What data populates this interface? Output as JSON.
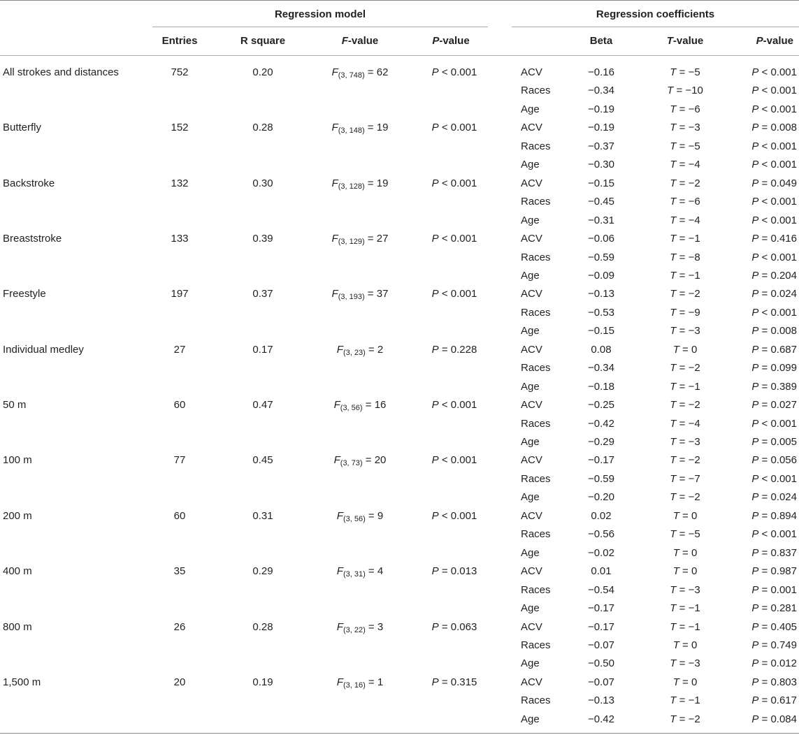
{
  "headers": {
    "group_model": "Regression model",
    "group_coefficients": "Regression coefficients",
    "entries": "Entries",
    "r_square": "R square",
    "f_value_italic": "F",
    "f_value_rest": "-value",
    "p_value_italic": "P",
    "p_value_rest": "-value",
    "beta": "Beta",
    "t_value_italic": "T",
    "t_value_rest": "-value",
    "p_value2_italic": "P",
    "p_value2_rest": "-value"
  },
  "groups": [
    {
      "label": "All strokes and distances",
      "entries": "752",
      "r_square": "0.20",
      "f_sub": "(3, 748)",
      "f_val": "62",
      "p_model": "< 0.001",
      "coefs": [
        {
          "var": "ACV",
          "beta": "−0.16",
          "t": "−5",
          "p": "< 0.001"
        },
        {
          "var": "Races",
          "beta": "−0.34",
          "t": "−10",
          "p": "< 0.001"
        },
        {
          "var": "Age",
          "beta": "−0.19",
          "t": "−6",
          "p": "< 0.001"
        }
      ]
    },
    {
      "label": "Butterfly",
      "entries": "152",
      "r_square": "0.28",
      "f_sub": "(3, 148)",
      "f_val": "19",
      "p_model": "< 0.001",
      "coefs": [
        {
          "var": "ACV",
          "beta": "−0.19",
          "t": "−3",
          "p": "= 0.008"
        },
        {
          "var": "Races",
          "beta": "−0.37",
          "t": "−5",
          "p": "< 0.001"
        },
        {
          "var": "Age",
          "beta": "−0.30",
          "t": "−4",
          "p": "< 0.001"
        }
      ]
    },
    {
      "label": "Backstroke",
      "entries": "132",
      "r_square": "0.30",
      "f_sub": "(3, 128)",
      "f_val": "19",
      "p_model": "< 0.001",
      "coefs": [
        {
          "var": "ACV",
          "beta": "−0.15",
          "t": "−2",
          "p": "= 0.049"
        },
        {
          "var": "Races",
          "beta": "−0.45",
          "t": "−6",
          "p": "< 0.001"
        },
        {
          "var": "Age",
          "beta": "−0.31",
          "t": "−4",
          "p": "< 0.001"
        }
      ]
    },
    {
      "label": "Breaststroke",
      "entries": "133",
      "r_square": "0.39",
      "f_sub": "(3, 129)",
      "f_val": "27",
      "p_model": "< 0.001",
      "coefs": [
        {
          "var": "ACV",
          "beta": "−0.06",
          "t": "−1",
          "p": "= 0.416"
        },
        {
          "var": "Races",
          "beta": "−0.59",
          "t": "−8",
          "p": "< 0.001"
        },
        {
          "var": "Age",
          "beta": "−0.09",
          "t": "−1",
          "p": "= 0.204"
        }
      ]
    },
    {
      "label": "Freestyle",
      "entries": "197",
      "r_square": "0.37",
      "f_sub": "(3, 193)",
      "f_val": "37",
      "p_model": "< 0.001",
      "coefs": [
        {
          "var": "ACV",
          "beta": "−0.13",
          "t": "−2",
          "p": "= 0.024"
        },
        {
          "var": "Races",
          "beta": "−0.53",
          "t": "−9",
          "p": "< 0.001"
        },
        {
          "var": "Age",
          "beta": "−0.15",
          "t": "−3",
          "p": "= 0.008"
        }
      ]
    },
    {
      "label": "Individual medley",
      "entries": "27",
      "r_square": "0.17",
      "f_sub": "(3, 23)",
      "f_val": "2",
      "p_model": "= 0.228",
      "coefs": [
        {
          "var": "ACV",
          "beta": "0.08",
          "t": "0",
          "p": "= 0.687"
        },
        {
          "var": "Races",
          "beta": "−0.34",
          "t": "−2",
          "p": "= 0.099"
        },
        {
          "var": "Age",
          "beta": "−0.18",
          "t": "−1",
          "p": "= 0.389"
        }
      ]
    },
    {
      "label": "50 m",
      "entries": "60",
      "r_square": "0.47",
      "f_sub": "(3, 56)",
      "f_val": "16",
      "p_model": "< 0.001",
      "coefs": [
        {
          "var": "ACV",
          "beta": "−0.25",
          "t": "−2",
          "p": "= 0.027"
        },
        {
          "var": "Races",
          "beta": "−0.42",
          "t": "−4",
          "p": "< 0.001"
        },
        {
          "var": "Age",
          "beta": "−0.29",
          "t": "−3",
          "p": "= 0.005"
        }
      ]
    },
    {
      "label": "100 m",
      "entries": "77",
      "r_square": "0.45",
      "f_sub": "(3, 73)",
      "f_val": "20",
      "p_model": "< 0.001",
      "coefs": [
        {
          "var": "ACV",
          "beta": "−0.17",
          "t": "−2",
          "p": "= 0.056"
        },
        {
          "var": "Races",
          "beta": "−0.59",
          "t": "−7",
          "p": "< 0.001"
        },
        {
          "var": "Age",
          "beta": "−0.20",
          "t": "−2",
          "p": "= 0.024"
        }
      ]
    },
    {
      "label": "200 m",
      "entries": "60",
      "r_square": "0.31",
      "f_sub": "(3, 56)",
      "f_val": "9",
      "p_model": "< 0.001",
      "coefs": [
        {
          "var": "ACV",
          "beta": "0.02",
          "t": "0",
          "p": "= 0.894"
        },
        {
          "var": "Races",
          "beta": "−0.56",
          "t": "−5",
          "p": "< 0.001"
        },
        {
          "var": "Age",
          "beta": "−0.02",
          "t": "0",
          "p": "= 0.837"
        }
      ]
    },
    {
      "label": "400 m",
      "entries": "35",
      "r_square": "0.29",
      "f_sub": "(3, 31)",
      "f_val": "4",
      "p_model": "= 0.013",
      "coefs": [
        {
          "var": "ACV",
          "beta": "0.01",
          "t": "0",
          "p": "= 0.987"
        },
        {
          "var": "Races",
          "beta": "−0.54",
          "t": "−3",
          "p": "= 0.001"
        },
        {
          "var": "Age",
          "beta": "−0.17",
          "t": "−1",
          "p": "= 0.281"
        }
      ]
    },
    {
      "label": "800 m",
      "entries": "26",
      "r_square": "0.28",
      "f_sub": "(3, 22)",
      "f_val": "3",
      "p_model": "= 0.063",
      "coefs": [
        {
          "var": "ACV",
          "beta": "−0.17",
          "t": "−1",
          "p": "= 0.405"
        },
        {
          "var": "Races",
          "beta": "−0.07",
          "t": "0",
          "p": "= 0.749"
        },
        {
          "var": "Age",
          "beta": "−0.50",
          "t": "−3",
          "p": "= 0.012"
        }
      ]
    },
    {
      "label": "1,500 m",
      "entries": "20",
      "r_square": "0.19",
      "f_sub": "(3, 16)",
      "f_val": "1",
      "p_model": "= 0.315",
      "coefs": [
        {
          "var": "ACV",
          "beta": "−0.07",
          "t": "0",
          "p": "= 0.803"
        },
        {
          "var": "Races",
          "beta": "−0.13",
          "t": "−1",
          "p": "= 0.617"
        },
        {
          "var": "Age",
          "beta": "−0.42",
          "t": "−2",
          "p": "= 0.084"
        }
      ]
    }
  ]
}
